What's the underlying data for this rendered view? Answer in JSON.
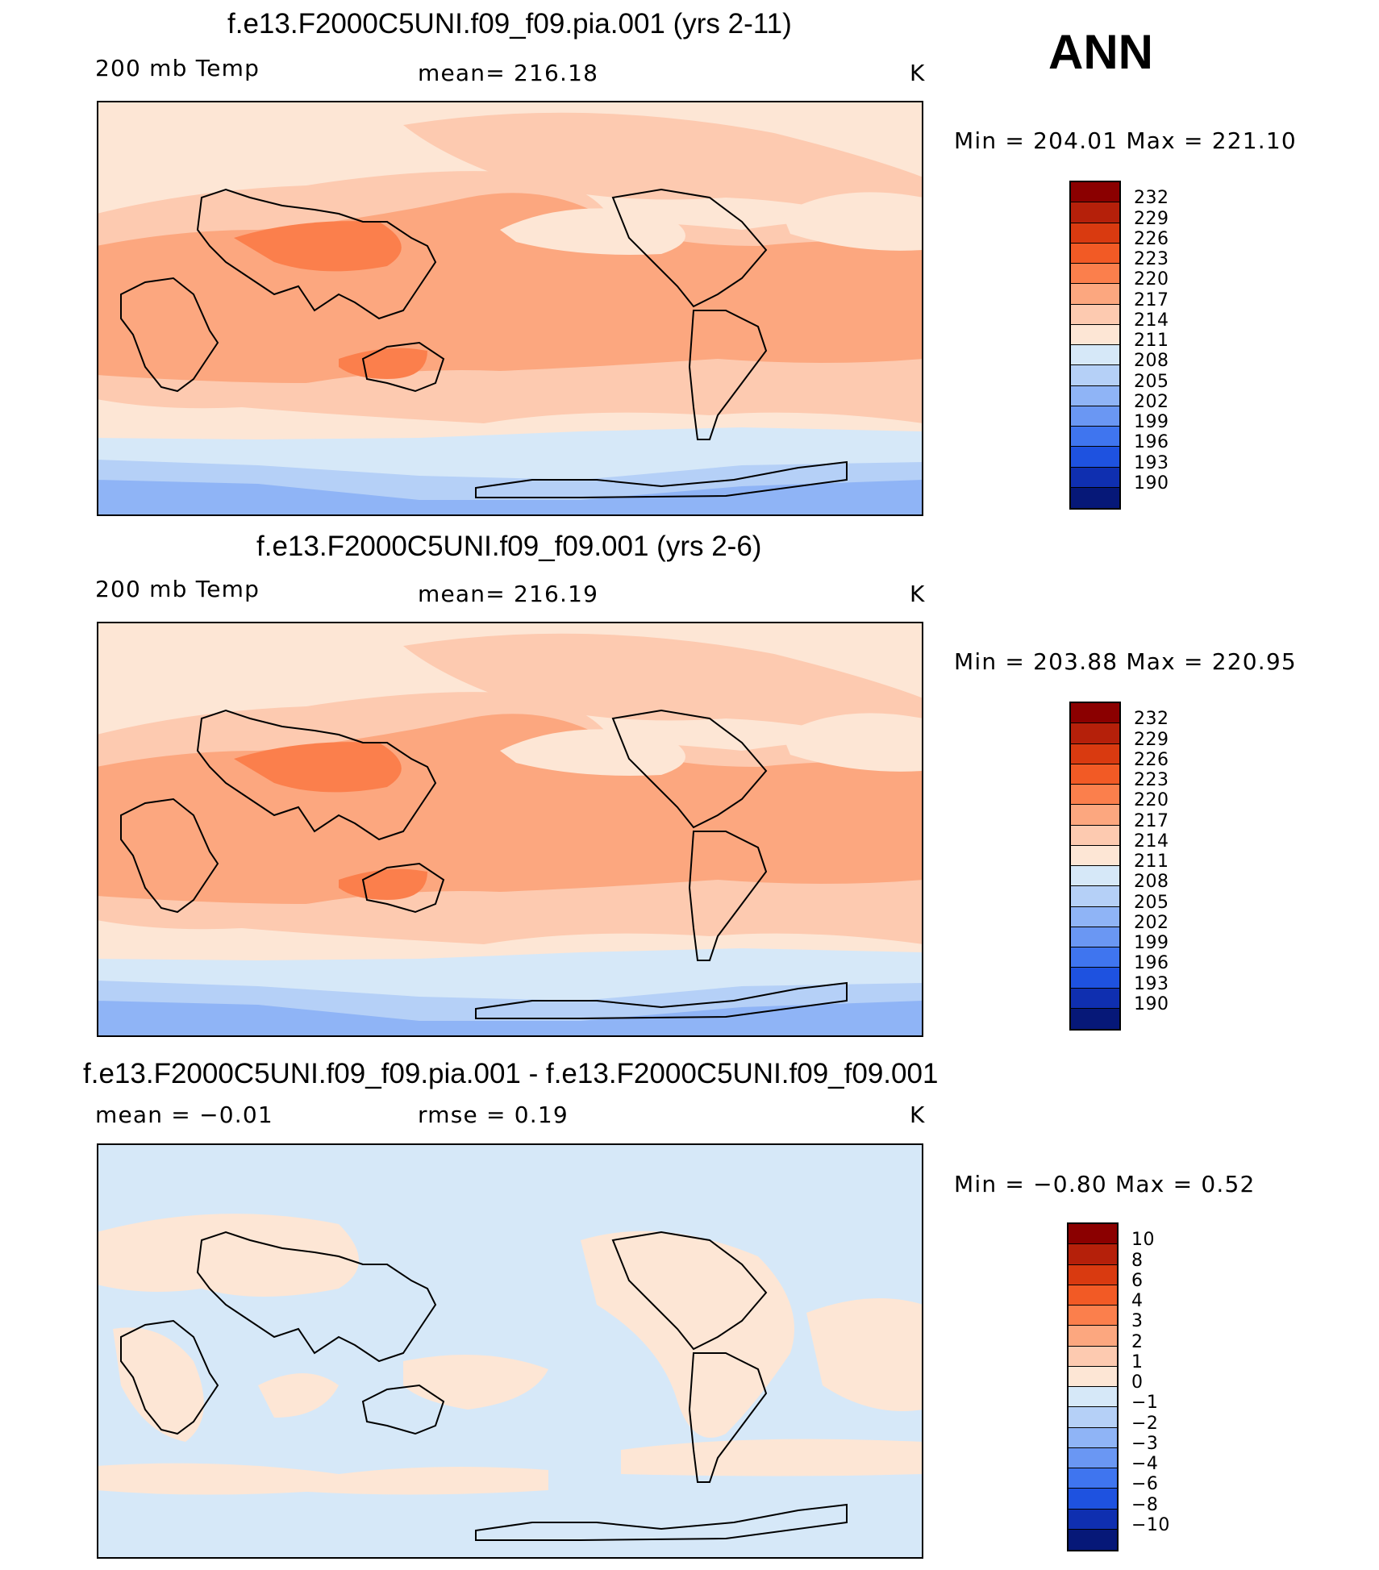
{
  "season": "ANN",
  "panels": [
    {
      "title": "f.e13.F2000C5UNI.f09_f09.pia.001 (yrs 2-11)",
      "left_label": "200 mb Temp",
      "center_label": "mean=  216.18",
      "units": "K",
      "minmax": "Min  =  204.01  Max  =  221.10",
      "colorbar": {
        "levels": [
          "232",
          "229",
          "226",
          "223",
          "220",
          "217",
          "214",
          "211",
          "208",
          "205",
          "202",
          "199",
          "196",
          "193",
          "190"
        ],
        "colors": [
          "#8b0000",
          "#b5200a",
          "#d93a10",
          "#f25a25",
          "#fb7f4c",
          "#fca77f",
          "#fdcab0",
          "#fde6d5",
          "#d6e8f8",
          "#b5d0f7",
          "#8fb4f6",
          "#6a97f3",
          "#3f75ef",
          "#1e52e0",
          "#0f2fb0",
          "#061878"
        ]
      },
      "map_style": "absolute"
    },
    {
      "title": "f.e13.F2000C5UNI.f09_f09.001 (yrs 2-6)",
      "left_label": "200 mb Temp",
      "center_label": "mean=  216.19",
      "units": "K",
      "minmax": "Min  =  203.88  Max  =  220.95",
      "colorbar": {
        "levels": [
          "232",
          "229",
          "226",
          "223",
          "220",
          "217",
          "214",
          "211",
          "208",
          "205",
          "202",
          "199",
          "196",
          "193",
          "190"
        ],
        "colors": [
          "#8b0000",
          "#b5200a",
          "#d93a10",
          "#f25a25",
          "#fb7f4c",
          "#fca77f",
          "#fdcab0",
          "#fde6d5",
          "#d6e8f8",
          "#b5d0f7",
          "#8fb4f6",
          "#6a97f3",
          "#3f75ef",
          "#1e52e0",
          "#0f2fb0",
          "#061878"
        ]
      },
      "map_style": "absolute"
    },
    {
      "title": "f.e13.F2000C5UNI.f09_f09.pia.001 - f.e13.F2000C5UNI.f09_f09.001",
      "left_label": "mean =   −0.01",
      "center_label": "rmse =     0.19",
      "units": "K",
      "minmax": "Min  =    −0.80  Max  =     0.52",
      "colorbar": {
        "levels": [
          "10",
          "8",
          "6",
          "4",
          "3",
          "2",
          "1",
          "0",
          "−1",
          "−2",
          "−3",
          "−4",
          "−6",
          "−8",
          "−10"
        ],
        "colors": [
          "#8b0000",
          "#b5200a",
          "#d93a10",
          "#f25a25",
          "#fb7f4c",
          "#fca77f",
          "#fdcab0",
          "#fde6d5",
          "#d6e8f8",
          "#b5d0f7",
          "#8fb4f6",
          "#6a97f3",
          "#3f75ef",
          "#1e52e0",
          "#0f2fb0",
          "#061878"
        ]
      },
      "map_style": "difference"
    }
  ]
}
